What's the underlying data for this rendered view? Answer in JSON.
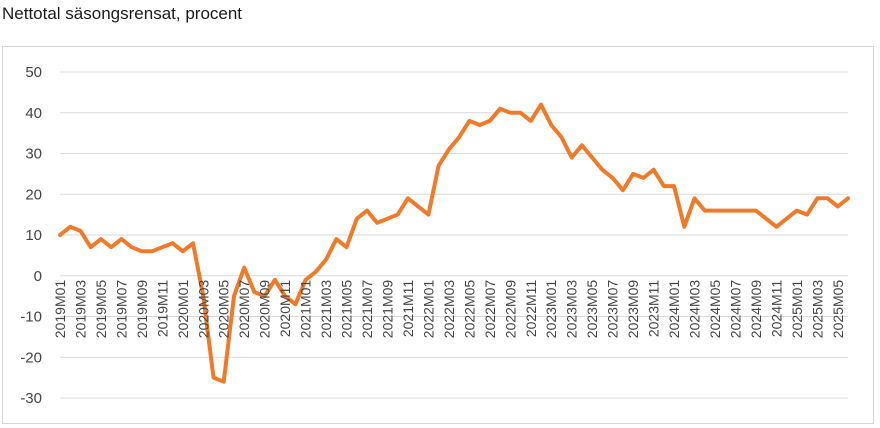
{
  "chart_data": {
    "type": "line",
    "title": "Nettotal säsongsrensat, procent",
    "ylim": [
      -30,
      50
    ],
    "yticks": [
      50,
      40,
      30,
      20,
      10,
      0,
      -10,
      -20,
      -30
    ],
    "grid": true,
    "series": [
      {
        "color": "#ef7b2a",
        "values": [
          10,
          12,
          11,
          7,
          9,
          7,
          9,
          7,
          6,
          6,
          7,
          8,
          6,
          8,
          -5,
          -25,
          -26,
          -5,
          2,
          -4,
          -5,
          -1,
          -5,
          -7,
          -1,
          1,
          4,
          9,
          7,
          14,
          16,
          13,
          14,
          15,
          19,
          17,
          15,
          27,
          31,
          34,
          38,
          37,
          38,
          41,
          40,
          40,
          38,
          42,
          37,
          34,
          29,
          32,
          29,
          26,
          24,
          21,
          25,
          24,
          26,
          22,
          22,
          12,
          19,
          16,
          16,
          16,
          16,
          16,
          16,
          14,
          12,
          14,
          16,
          15,
          19,
          19,
          17,
          19
        ]
      }
    ],
    "x": [
      "2019M01",
      "2019M02",
      "2019M03",
      "2019M04",
      "2019M05",
      "2019M06",
      "2019M07",
      "2019M08",
      "2019M09",
      "2019M10",
      "2019M11",
      "2019M12",
      "2020M01",
      "2020M02",
      "2020M03",
      "2020M04",
      "2020M05",
      "2020M06",
      "2020M07",
      "2020M08",
      "2020M09",
      "2020M10",
      "2020M11",
      "2020M12",
      "2021M01",
      "2021M02",
      "2021M03",
      "2021M04",
      "2021M05",
      "2021M06",
      "2021M07",
      "2021M08",
      "2021M09",
      "2021M10",
      "2021M11",
      "2021M12",
      "2022M01",
      "2022M02",
      "2022M03",
      "2022M04",
      "2022M05",
      "2022M06",
      "2022M07",
      "2022M08",
      "2022M09",
      "2022M10",
      "2022M11",
      "2022M12",
      "2023M01",
      "2023M02",
      "2023M03",
      "2023M04",
      "2023M05",
      "2023M06",
      "2023M07",
      "2023M08",
      "2023M09",
      "2023M10",
      "2023M11",
      "2023M12",
      "2024M01",
      "2024M02",
      "2024M03",
      "2024M04",
      "2024M05",
      "2024M06",
      "2024M07",
      "2024M08",
      "2024M09",
      "2024M10",
      "2024M11",
      "2024M12",
      "2025M01",
      "2025M02",
      "2025M03",
      "2025M04",
      "2025M05",
      "2025M06"
    ],
    "xtick_labels": [
      "2019M01",
      "2019M03",
      "2019M05",
      "2019M07",
      "2019M09",
      "2019M11",
      "2020M01",
      "2020M03",
      "2020M05",
      "2020M07",
      "2020M09",
      "2020M11",
      "2021M01",
      "2021M03",
      "2021M05",
      "2021M07",
      "2021M09",
      "2021M11",
      "2022M01",
      "2022M03",
      "2022M05",
      "2022M07",
      "2022M09",
      "2022M11",
      "2023M01",
      "2023M03",
      "2023M05",
      "2023M07",
      "2023M09",
      "2023M11",
      "2024M01",
      "2024M03",
      "2024M05",
      "2024M07",
      "2024M09",
      "2024M11",
      "2025M01",
      "2025M03",
      "2025M05"
    ]
  }
}
